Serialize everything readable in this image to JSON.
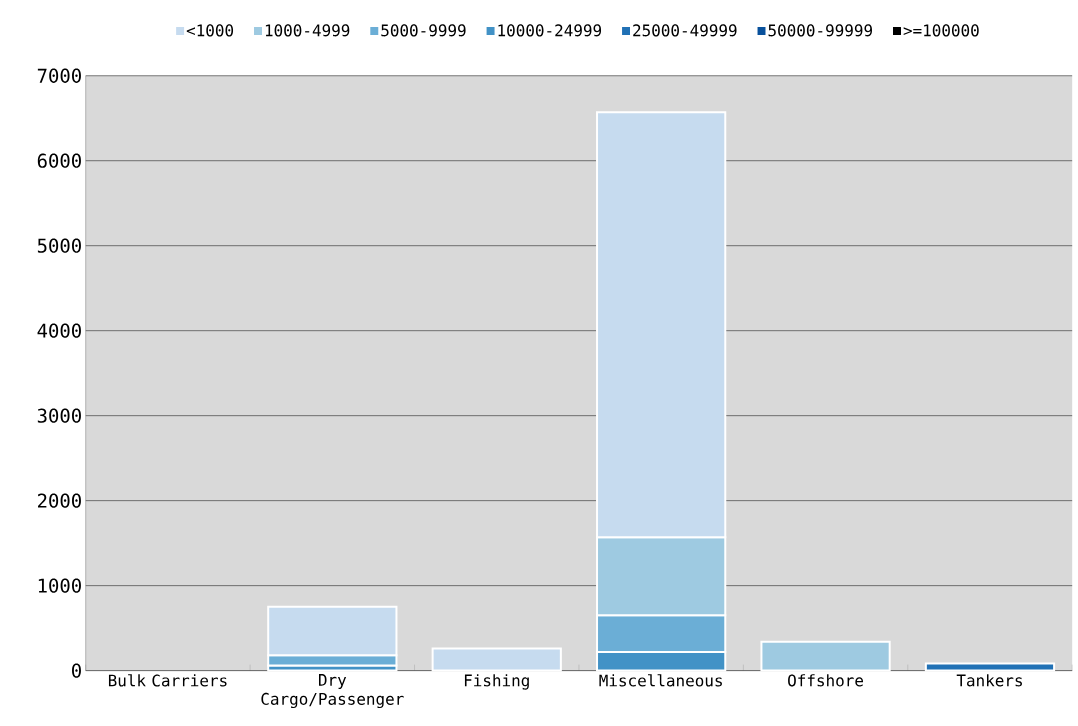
{
  "chart_data": {
    "type": "bar",
    "stacked": true,
    "categories": [
      "Bulk Carriers",
      "Dry Cargo/Passenger",
      "Fishing",
      "Miscellaneous",
      "Offshore",
      "Tankers"
    ],
    "series": [
      {
        "name": ">=100000",
        "color": "#000000",
        "values": [
          null,
          null,
          null,
          null,
          null,
          null
        ]
      },
      {
        "name": "50000-99999",
        "color": "#08519c",
        "values": [
          null,
          null,
          null,
          null,
          null,
          null
        ]
      },
      {
        "name": "25000-49999",
        "color": "#2171b5",
        "values": [
          null,
          null,
          null,
          null,
          null,
          85
        ]
      },
      {
        "name": "10000-24999",
        "color": "#4292c6",
        "values": [
          null,
          60,
          null,
          220,
          null,
          null
        ]
      },
      {
        "name": "5000-9999",
        "color": "#6baed6",
        "values": [
          null,
          120,
          null,
          430,
          null,
          null
        ]
      },
      {
        "name": "1000-4999",
        "color": "#9ecae1",
        "values": [
          null,
          null,
          null,
          920,
          340,
          null
        ]
      },
      {
        "name": "<1000",
        "color": "#c6dbef",
        "values": [
          null,
          570,
          260,
          5000,
          null,
          null
        ]
      }
    ],
    "ylim": [
      0,
      7000
    ],
    "yticks": [
      0,
      1000,
      2000,
      3000,
      4000,
      5000,
      6000,
      7000
    ],
    "grid": "y",
    "legend": "top"
  }
}
